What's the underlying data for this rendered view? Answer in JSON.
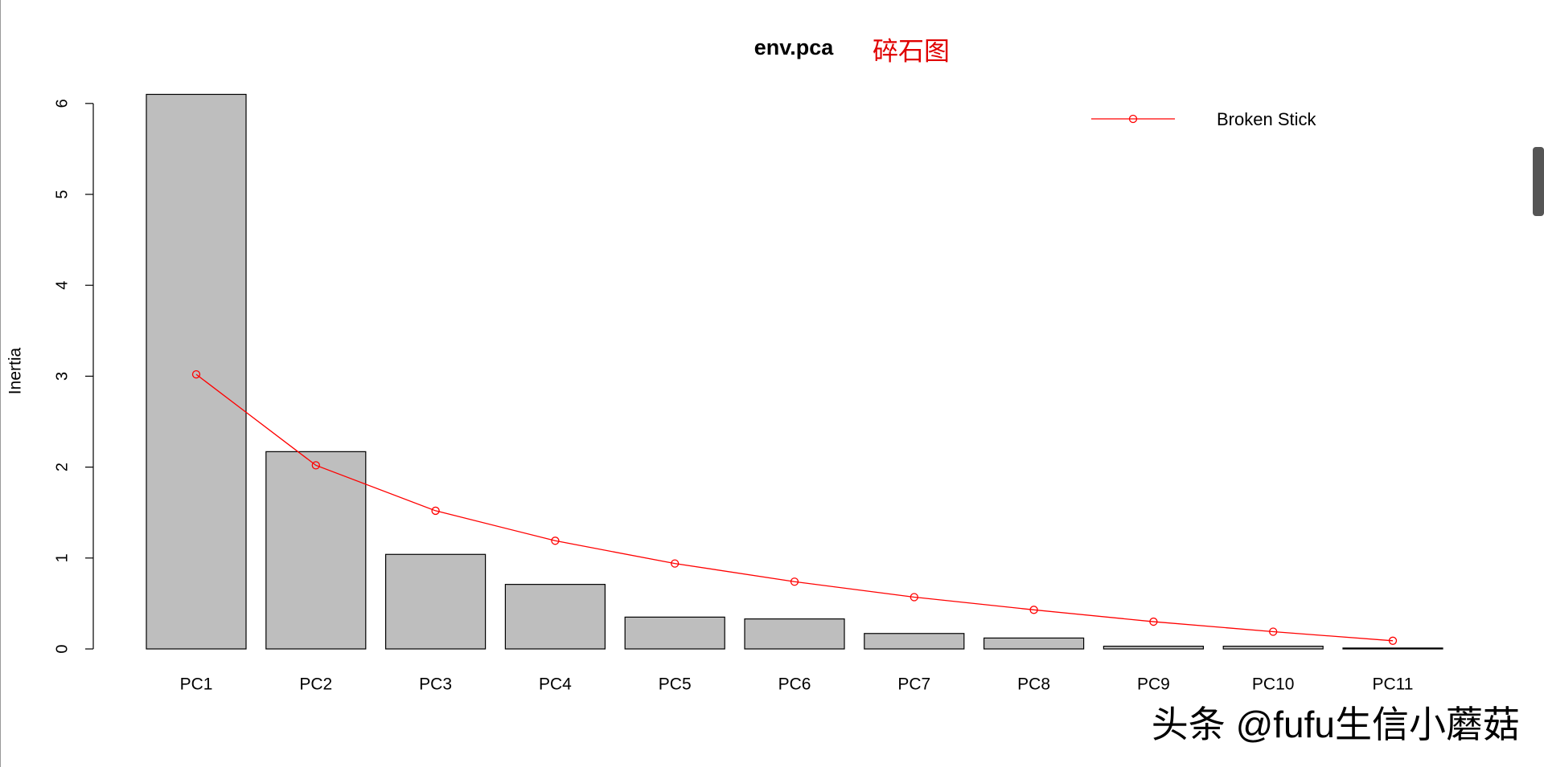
{
  "chart_data": {
    "type": "bar",
    "title": "env.pca",
    "annotation": "碎石图",
    "ylabel": "Inertia",
    "categories": [
      "PC1",
      "PC2",
      "PC3",
      "PC4",
      "PC5",
      "PC6",
      "PC7",
      "PC8",
      "PC9",
      "PC10",
      "PC11"
    ],
    "values": [
      6.1,
      2.17,
      1.04,
      0.71,
      0.35,
      0.33,
      0.17,
      0.12,
      0.03,
      0.03,
      0.01
    ],
    "color": "#bebebe",
    "line": {
      "name": "Broken Stick",
      "color": "#ff0000",
      "values": [
        3.02,
        2.02,
        1.52,
        1.19,
        0.94,
        0.74,
        0.57,
        0.43,
        0.3,
        0.19,
        0.09
      ]
    },
    "ylim": [
      0,
      6.1
    ],
    "yticks": [
      0,
      1,
      2,
      3,
      4,
      5,
      6
    ],
    "legend": "top-right",
    "watermark": "头条 @fufu生信小蘑菇"
  }
}
